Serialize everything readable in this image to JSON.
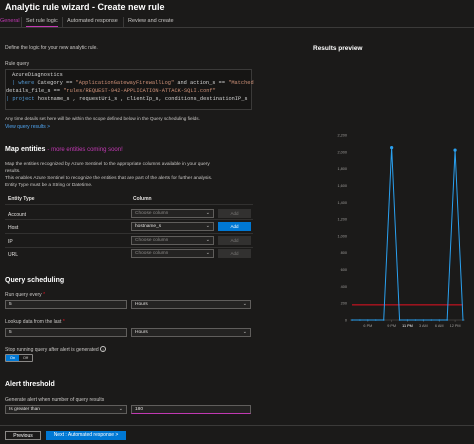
{
  "window": {
    "title": "Analytic rule wizard - Create new rule"
  },
  "tabs": [
    {
      "label": "General"
    },
    {
      "label": "Set rule logic"
    },
    {
      "label": "Automated response"
    },
    {
      "label": "Review and create"
    }
  ],
  "intro": "Define the logic for your new analytic rule.",
  "query": {
    "label": "Rule query",
    "line1": "AzureDiagnostics",
    "line2_kw1": "| where",
    "line2_a": " Category == ",
    "line2_s1": "\"ApplicationGatewayFirewallLog\"",
    "line2_b": " and action_s == ",
    "line2_s2": "\"Matched",
    "line3_a": "details_file_s == ",
    "line3_s": "\"rules/REQUEST-942-APPLICATION-ATTACK-SQLI.conf\"",
    "line4_kw": "| project",
    "line4_a": " hostname_s , requestUri_s , clientIp_s, conditions_destinationIP_s",
    "note": "Any time details set here will be within the scope defined below in the Query scheduling fields.",
    "link": "View query results >"
  },
  "map_entities": {
    "heading": "Map entities",
    "heading_link": "- more entities coming soon!",
    "desc1": "Map the entities recognized by Azure Sentinel to the appropriate columns available in your query",
    "desc2": "results.",
    "desc3": "This enables Azure Sentinel to recognize the entities that are part of the alerts for further analysis.",
    "desc4": "Entity Type must be a String or Datetime.",
    "col_entity": "Entity Type",
    "col_column": "Column",
    "rows": [
      {
        "type": "Account",
        "value": "Choose column",
        "add": "Add"
      },
      {
        "type": "Host",
        "value": "hostname_s",
        "add": "Add"
      },
      {
        "type": "IP",
        "value": "Choose column",
        "add": "Add"
      },
      {
        "type": "URL",
        "value": "Choose column",
        "add": "Add"
      }
    ]
  },
  "scheduling": {
    "heading": "Query scheduling",
    "run_label": "Run query every",
    "run_required": "*",
    "run_value": "5",
    "run_unit": "Hours",
    "lookup_label": "Lookup data from the last",
    "lookup_required": "*",
    "lookup_value": "5",
    "lookup_unit": "Hours",
    "stop_label": "Stop running query after alert is generated",
    "stop_info": "i",
    "toggle_on": "On",
    "toggle_off": "Off"
  },
  "threshold": {
    "heading": "Alert threshold",
    "gen_label": "Generate alert when number of query results",
    "operator": "Is greater than",
    "value": "180"
  },
  "footer": {
    "previous": "Previous",
    "next": "Next : Automated response >"
  },
  "preview": {
    "title": "Results preview"
  },
  "colors": {
    "accent": "#0078d4",
    "visited_tab": "#c239b3",
    "series": "#2aa0ef",
    "threshold": "#e81123"
  },
  "chart_data": {
    "type": "line",
    "title": "",
    "xlabel": "",
    "ylabel": "",
    "yticks": [
      "2,200",
      "2,000",
      "1,800",
      "1,600",
      "1,400",
      "1,200",
      "1,000",
      "800",
      "600",
      "400",
      "200",
      "0"
    ],
    "xticks": [
      "6 PM",
      "9 PM",
      "11 PM",
      "3 AM",
      "6 AM",
      "12 PM"
    ],
    "ylim": [
      0,
      2200
    ],
    "x": [
      0,
      1,
      2,
      3,
      4,
      5,
      6,
      7,
      8,
      9,
      10,
      11,
      12,
      13,
      14
    ],
    "series": [
      {
        "values": [
          0,
          0,
          0,
          0,
          0,
          2050,
          0,
          0,
          0,
          0,
          0,
          0,
          0,
          2020,
          0
        ]
      },
      {
        "values": [
          180,
          180,
          180,
          180,
          180,
          180,
          180,
          180,
          180,
          180,
          180,
          180,
          180,
          180,
          180
        ]
      }
    ]
  }
}
